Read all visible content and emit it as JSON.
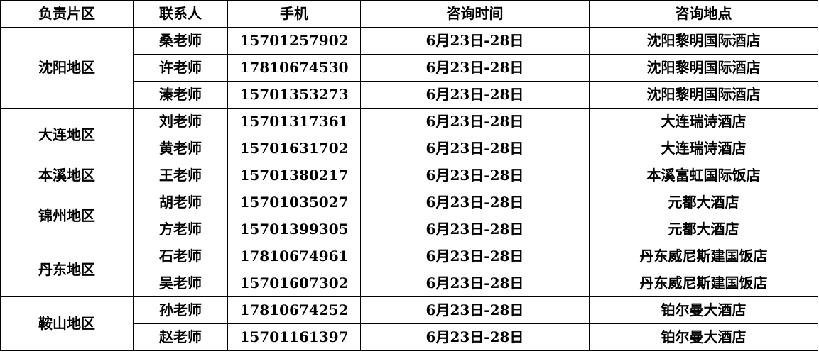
{
  "headers": [
    "负责片区",
    "联系人",
    "手机",
    "咨询时间",
    "咨询地点"
  ],
  "groups": [
    {
      "region": "沈阳地区",
      "rows": [
        {
          "contact": "桑老师",
          "phone": "15701257902",
          "time": "6月23日-28日",
          "place": "沈阳黎明国际酒店"
        },
        {
          "contact": "许老师",
          "phone": "17810674530",
          "time": "6月23日-28日",
          "place": "沈阳黎明国际酒店"
        },
        {
          "contact": "溱老师",
          "phone": "15701353273",
          "time": "6月23日-28日",
          "place": "沈阳黎明国际酒店"
        }
      ]
    },
    {
      "region": "大连地区",
      "rows": [
        {
          "contact": "刘老师",
          "phone": "15701317361",
          "time": "6月23日-28日",
          "place": "大连瑞诗酒店"
        },
        {
          "contact": "黄老师",
          "phone": "15701631702",
          "time": "6月23日-28日",
          "place": "大连瑞诗酒店"
        }
      ]
    },
    {
      "region": "本溪地区",
      "rows": [
        {
          "contact": "王老师",
          "phone": "15701380217",
          "time": "6月23日-28日",
          "place": "本溪富虹国际饭店"
        }
      ]
    },
    {
      "region": "锦州地区",
      "rows": [
        {
          "contact": "胡老师",
          "phone": "15701035027",
          "time": "6月23日-28日",
          "place": "元都大酒店"
        },
        {
          "contact": "方老师",
          "phone": "15701399305",
          "time": "6月23日-28日",
          "place": "元都大酒店"
        }
      ]
    },
    {
      "region": "丹东地区",
      "rows": [
        {
          "contact": "石老师",
          "phone": "17810674961",
          "time": "6月23日-28日",
          "place": "丹东威尼斯建国饭店"
        },
        {
          "contact": "吴老师",
          "phone": "15701607302",
          "time": "6月23日-28日",
          "place": "丹东威尼斯建国饭店"
        }
      ]
    },
    {
      "region": "鞍山地区",
      "rows": [
        {
          "contact": "孙老师",
          "phone": "17810674252",
          "time": "6月23日-28日",
          "place": "铂尔曼大酒店"
        },
        {
          "contact": "赵老师",
          "phone": "15701161397",
          "time": "6月23日-28日",
          "place": "铂尔曼大酒店"
        }
      ]
    }
  ]
}
